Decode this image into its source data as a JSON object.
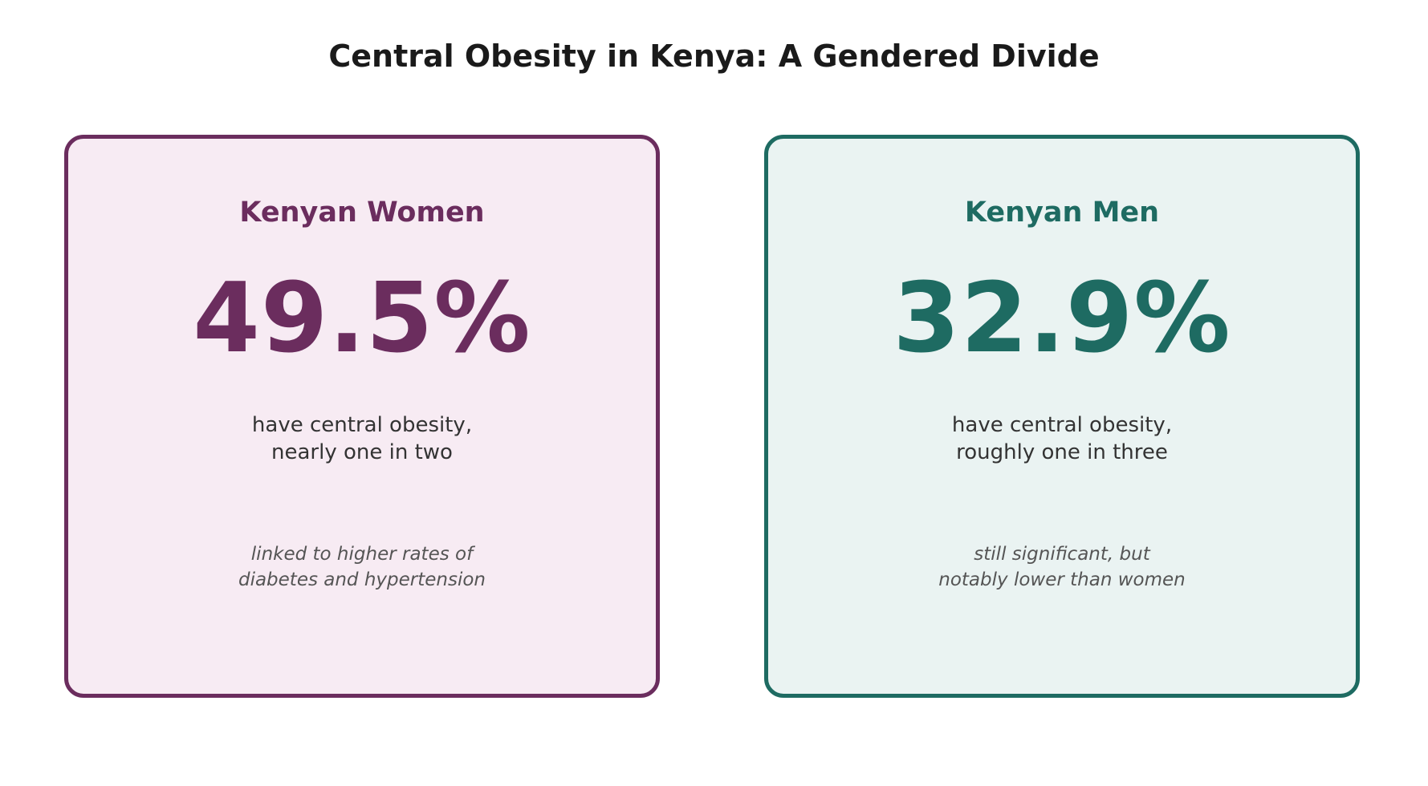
{
  "title": "Central Obesity in Kenya: A Gendered Divide",
  "colors": {
    "women_accent": "#6b2d5e",
    "women_background": "#f7ebf3",
    "men_accent": "#1e6b62",
    "men_background": "#eaf3f2",
    "title_text": "#1a1a1a"
  },
  "cards": [
    {
      "heading": "Kenyan Women",
      "value": "49.5%",
      "description": [
        "have central obesity,",
        "nearly one in two"
      ],
      "note": [
        "linked to higher rates of",
        "diabetes and hypertension"
      ]
    },
    {
      "heading": "Kenyan Men",
      "value": "32.9%",
      "description": [
        "have central obesity,",
        "roughly one in three"
      ],
      "note": [
        "still significant, but",
        "notably lower than women"
      ]
    }
  ]
}
